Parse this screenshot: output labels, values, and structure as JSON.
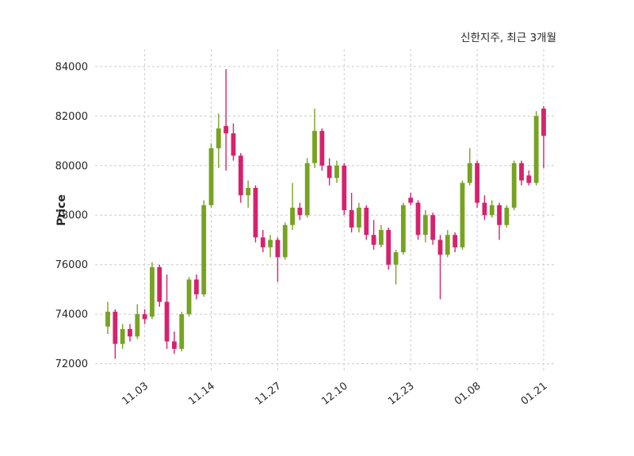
{
  "header": {
    "title": "신한지주, 최근 3개월"
  },
  "chart_data": {
    "type": "candlestick",
    "title": "신한지주, 최근 3개월",
    "ylabel": "Price",
    "ylim": [
      71700,
      84700
    ],
    "yticks": [
      72000,
      74000,
      76000,
      78000,
      80000,
      82000,
      84000
    ],
    "xtick_labels": [
      "11.03",
      "11.14",
      "11.27",
      "12.10",
      "12.23",
      "01.08",
      "01.21"
    ],
    "xtick_indices": [
      5,
      14,
      23,
      32,
      41,
      50,
      59
    ],
    "grid": true,
    "legend": "none",
    "up_color": "#76A321",
    "down_color": "#D6226E",
    "dates": [
      "10.27",
      "10.28",
      "10.29",
      "10.30",
      "10.31",
      "11.03",
      "11.04",
      "11.05",
      "11.06",
      "11.07",
      "11.10",
      "11.11",
      "11.12",
      "11.13",
      "11.14",
      "11.17",
      "11.18",
      "11.19",
      "11.20",
      "11.21",
      "11.24",
      "11.25",
      "11.26",
      "11.27",
      "11.28",
      "12.01",
      "12.02",
      "12.03",
      "12.04",
      "12.05",
      "12.08",
      "12.09",
      "12.10",
      "12.11",
      "12.12",
      "12.15",
      "12.16",
      "12.17",
      "12.18",
      "12.19",
      "12.22",
      "12.23",
      "12.24",
      "12.26",
      "12.29",
      "12.30",
      "01.02",
      "01.05",
      "01.06",
      "01.07",
      "01.08",
      "01.09",
      "01.12",
      "01.13",
      "01.14",
      "01.15",
      "01.16",
      "01.19",
      "01.20",
      "01.21"
    ],
    "ohlc": [
      [
        73500,
        74500,
        73200,
        74100
      ],
      [
        74100,
        74200,
        72200,
        72800
      ],
      [
        72800,
        73600,
        72600,
        73400
      ],
      [
        73400,
        73600,
        72900,
        73100
      ],
      [
        73100,
        74400,
        73000,
        74000
      ],
      [
        74000,
        74200,
        73600,
        73800
      ],
      [
        73900,
        76100,
        73800,
        75900
      ],
      [
        75900,
        76000,
        74300,
        74500
      ],
      [
        74500,
        75600,
        72600,
        72900
      ],
      [
        72900,
        73300,
        72400,
        72600
      ],
      [
        72600,
        74100,
        72500,
        74000
      ],
      [
        74000,
        75500,
        73900,
        75400
      ],
      [
        75400,
        75600,
        74600,
        74800
      ],
      [
        74800,
        78600,
        74700,
        78400
      ],
      [
        78400,
        80900,
        78300,
        80700
      ],
      [
        80700,
        82100,
        79900,
        81500
      ],
      [
        81600,
        83900,
        79800,
        81300
      ],
      [
        81300,
        81700,
        80200,
        80400
      ],
      [
        80400,
        80500,
        78500,
        78800
      ],
      [
        78800,
        79400,
        78300,
        79100
      ],
      [
        79100,
        79200,
        76900,
        77100
      ],
      [
        77100,
        77400,
        76500,
        76700
      ],
      [
        76700,
        77200,
        76300,
        77000
      ],
      [
        77000,
        77100,
        75300,
        76300
      ],
      [
        76300,
        77700,
        76200,
        77600
      ],
      [
        77600,
        79300,
        77400,
        78300
      ],
      [
        78300,
        78500,
        77800,
        78000
      ],
      [
        78000,
        80300,
        77900,
        80100
      ],
      [
        80100,
        82300,
        79900,
        81400
      ],
      [
        81400,
        81500,
        79800,
        80000
      ],
      [
        80000,
        80300,
        79200,
        79500
      ],
      [
        79500,
        80200,
        79300,
        80000
      ],
      [
        80000,
        80100,
        78000,
        78200
      ],
      [
        78200,
        78900,
        77300,
        77500
      ],
      [
        77500,
        78500,
        77300,
        78300
      ],
      [
        78300,
        78400,
        77000,
        77200
      ],
      [
        77200,
        77800,
        76600,
        76800
      ],
      [
        76800,
        77600,
        76700,
        77400
      ],
      [
        77400,
        77500,
        75800,
        76000
      ],
      [
        76000,
        76600,
        75200,
        76500
      ],
      [
        76500,
        78500,
        76400,
        78400
      ],
      [
        78700,
        78900,
        78400,
        78500
      ],
      [
        78500,
        78600,
        77000,
        77200
      ],
      [
        77200,
        78200,
        76900,
        78000
      ],
      [
        78000,
        78100,
        76800,
        77000
      ],
      [
        77000,
        77200,
        74600,
        76400
      ],
      [
        76400,
        77400,
        76300,
        77200
      ],
      [
        77200,
        77300,
        76500,
        76700
      ],
      [
        76700,
        79400,
        76600,
        79300
      ],
      [
        79300,
        80700,
        79200,
        80100
      ],
      [
        80100,
        80200,
        78300,
        78500
      ],
      [
        78500,
        78800,
        77800,
        78000
      ],
      [
        78000,
        78600,
        77900,
        78400
      ],
      [
        78400,
        78500,
        77000,
        77600
      ],
      [
        77600,
        78400,
        77500,
        78300
      ],
      [
        78300,
        80200,
        78200,
        80100
      ],
      [
        80100,
        80200,
        79200,
        79400
      ],
      [
        79600,
        79800,
        79200,
        79300
      ],
      [
        79300,
        82200,
        79200,
        82000
      ],
      [
        82300,
        82400,
        79900,
        81200
      ]
    ]
  }
}
